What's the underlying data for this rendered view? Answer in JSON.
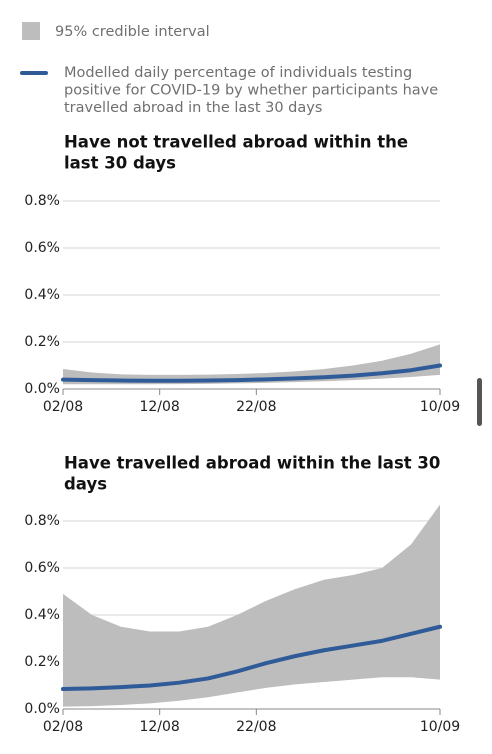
{
  "chart_data": [
    {
      "type": "line",
      "title": [
        "Have not travelled abroad within the",
        "last 30 days"
      ],
      "x": [
        "02/08",
        "05/08",
        "08/08",
        "11/08",
        "14/08",
        "17/08",
        "20/08",
        "23/08",
        "26/08",
        "29/08",
        "01/09",
        "04/09",
        "07/09",
        "10/09"
      ],
      "xlim": [
        "02/08",
        "10/09"
      ],
      "xticks": [
        "02/08",
        "12/08",
        "22/08",
        "10/09"
      ],
      "ylim": [
        0,
        0.8
      ],
      "yticks": [
        {
          "value": 0,
          "label": "0.0%"
        },
        {
          "value": 0.2,
          "label": "0.2%"
        },
        {
          "value": 0.4,
          "label": "0.4%"
        },
        {
          "value": 0.6,
          "label": "0.6%"
        },
        {
          "value": 0.8,
          "label": "0.8%"
        }
      ],
      "grid": true,
      "band": {
        "name": "95% credible interval",
        "color": "#bdbdbd",
        "lower": [
          0.02,
          0.02,
          0.02,
          0.02,
          0.021,
          0.022,
          0.024,
          0.026,
          0.029,
          0.033,
          0.038,
          0.044,
          0.051,
          0.06
        ],
        "upper": [
          0.085,
          0.07,
          0.062,
          0.06,
          0.06,
          0.061,
          0.064,
          0.068,
          0.075,
          0.085,
          0.1,
          0.12,
          0.15,
          0.19
        ]
      },
      "series": [
        {
          "name": [
            "Modelled daily percentage of individuals testing",
            "positive for COVID-19 by whether participants have",
            "travelled abroad in the last 30 days"
          ],
          "color": "#2f5b98",
          "values": [
            0.04,
            0.038,
            0.036,
            0.035,
            0.035,
            0.036,
            0.038,
            0.041,
            0.045,
            0.05,
            0.057,
            0.067,
            0.08,
            0.1
          ]
        }
      ]
    },
    {
      "type": "line",
      "title": [
        "Have travelled abroad within the last 30",
        "days"
      ],
      "x": [
        "02/08",
        "05/08",
        "08/08",
        "11/08",
        "14/08",
        "17/08",
        "20/08",
        "23/08",
        "26/08",
        "29/08",
        "01/09",
        "04/09",
        "07/09",
        "10/09"
      ],
      "xlim": [
        "02/08",
        "10/09"
      ],
      "xticks": [
        "02/08",
        "12/08",
        "22/08",
        "10/09"
      ],
      "ylim": [
        0,
        0.8
      ],
      "yticks": [
        {
          "value": 0,
          "label": "0.0%"
        },
        {
          "value": 0.2,
          "label": "0.2%"
        },
        {
          "value": 0.4,
          "label": "0.4%"
        },
        {
          "value": 0.6,
          "label": "0.6%"
        },
        {
          "value": 0.8,
          "label": "0.8%"
        }
      ],
      "grid": true,
      "band": {
        "color": "#bdbdbd",
        "lower": [
          0.01,
          0.012,
          0.017,
          0.024,
          0.035,
          0.05,
          0.07,
          0.09,
          0.105,
          0.115,
          0.125,
          0.135,
          0.135,
          0.125
        ],
        "upper": [
          0.49,
          0.4,
          0.35,
          0.33,
          0.33,
          0.35,
          0.4,
          0.46,
          0.51,
          0.55,
          0.57,
          0.6,
          0.7,
          0.87
        ]
      },
      "series": [
        {
          "color": "#2f5b98",
          "values": [
            0.085,
            0.088,
            0.093,
            0.1,
            0.112,
            0.13,
            0.16,
            0.195,
            0.225,
            0.25,
            0.27,
            0.29,
            0.32,
            0.35
          ]
        }
      ]
    }
  ]
}
